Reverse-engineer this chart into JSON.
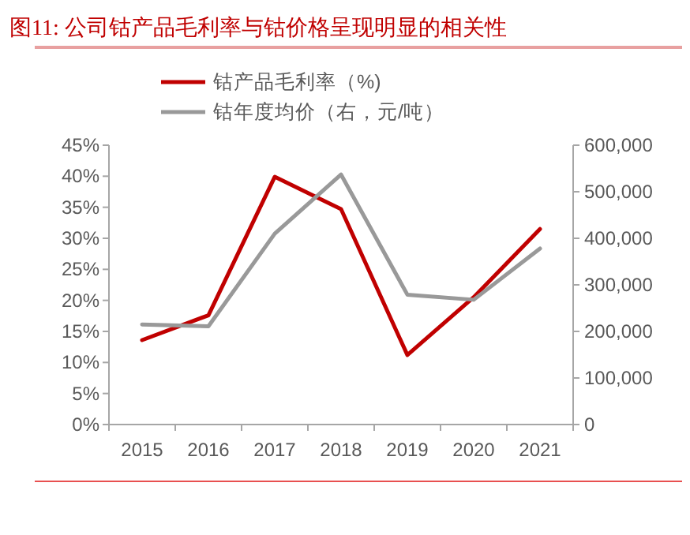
{
  "chart_data": {
    "type": "line",
    "title": "图11:  公司钴产品毛利率与钴价格呈现明显的相关性",
    "categories": [
      "2015",
      "2016",
      "2017",
      "2018",
      "2019",
      "2020",
      "2021"
    ],
    "series": [
      {
        "name": "钴产品毛利率（%)",
        "color": "#c00000",
        "values": [
          13.6,
          17.6,
          39.9,
          34.7,
          11.2,
          20.5,
          31.5
        ]
      },
      {
        "name": "钴年度均价（右，元/吨）",
        "color": "#999999",
        "axis": "y2",
        "values": [
          215000,
          211000,
          410000,
          537000,
          279000,
          268000,
          378000
        ]
      }
    ],
    "ylim": [
      0,
      45
    ],
    "yticks": [
      {
        "value": 0,
        "label": "0%"
      },
      {
        "value": 5,
        "label": "5%"
      },
      {
        "value": 10,
        "label": "10%"
      },
      {
        "value": 15,
        "label": "15%"
      },
      {
        "value": 20,
        "label": "20%"
      },
      {
        "value": 25,
        "label": "25%"
      },
      {
        "value": 30,
        "label": "30%"
      },
      {
        "value": 35,
        "label": "35%"
      },
      {
        "value": 40,
        "label": "40%"
      },
      {
        "value": 45,
        "label": "45%"
      }
    ],
    "y2lim": [
      0,
      600000
    ],
    "y2ticks": [
      0,
      {
        "value": 100000,
        "label": "100,000"
      },
      {
        "value": 200000,
        "label": "200,000"
      },
      {
        "value": 300000,
        "label": "300,000"
      },
      {
        "value": 400000,
        "label": "400,000"
      },
      {
        "value": 500000,
        "label": "500,000"
      },
      {
        "value": 600000,
        "label": "600,000"
      }
    ],
    "legend": "top",
    "grid": false,
    "marker": "none",
    "line_style": "solid"
  }
}
